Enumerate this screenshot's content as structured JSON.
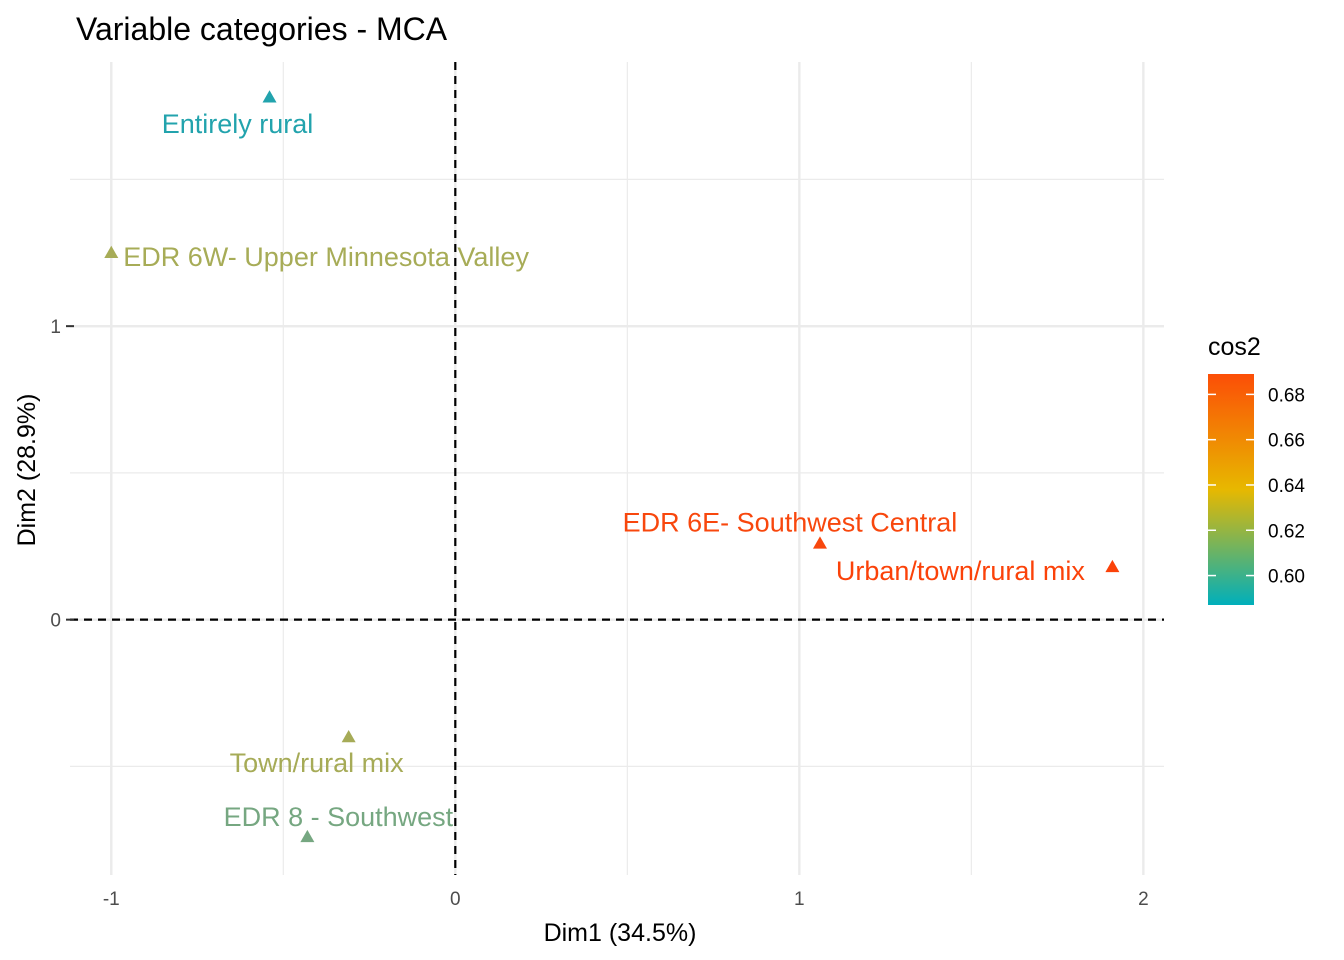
{
  "chart_data": {
    "type": "scatter",
    "title": "Variable categories - MCA",
    "xlabel": "Dim1 (34.5%)",
    "ylabel": "Dim2 (28.9%)",
    "xlim": [
      -1.12,
      2.06
    ],
    "ylim": [
      -0.87,
      1.9
    ],
    "x_ticks": [
      -1,
      0,
      1,
      2
    ],
    "x_tick_labels": [
      "-1",
      "0",
      "1",
      "2"
    ],
    "y_ticks": [
      0,
      1
    ],
    "y_tick_labels": [
      "0",
      "1"
    ],
    "grid": true,
    "reference_lines": {
      "x": 0,
      "y": 0,
      "style": "dashed"
    },
    "points": [
      {
        "label": "Entirely rural",
        "x": -0.54,
        "y": 1.78,
        "cos2": 0.598,
        "color": "#22a3ad"
      },
      {
        "label": "EDR 6W- Upper Minnesota Valley",
        "x": -1.0,
        "y": 1.25,
        "cos2": 0.617,
        "color": "#a7ac57"
      },
      {
        "label": "EDR 6E- Southwest Central",
        "x": 1.06,
        "y": 0.26,
        "cos2": 0.686,
        "color": "#f8470d"
      },
      {
        "label": "Urban/town/rural mix",
        "x": 1.91,
        "y": 0.18,
        "cos2": 0.688,
        "color": "#fb4209"
      },
      {
        "label": "Town/rural mix",
        "x": -0.31,
        "y": -0.4,
        "cos2": 0.617,
        "color": "#a6ab57"
      },
      {
        "label": "EDR 8 - Southwest",
        "x": -0.43,
        "y": -0.74,
        "cos2": 0.607,
        "color": "#76a781"
      }
    ],
    "legend": {
      "title": "cos2",
      "position": "right",
      "range": [
        0.587,
        0.689
      ],
      "ticks": [
        0.6,
        0.62,
        0.64,
        0.66,
        0.68
      ],
      "tick_labels": [
        "0.60",
        "0.62",
        "0.64",
        "0.66",
        "0.68"
      ],
      "gradient": [
        "#00AFBB",
        "#E7B800",
        "#FC4E07"
      ]
    }
  }
}
